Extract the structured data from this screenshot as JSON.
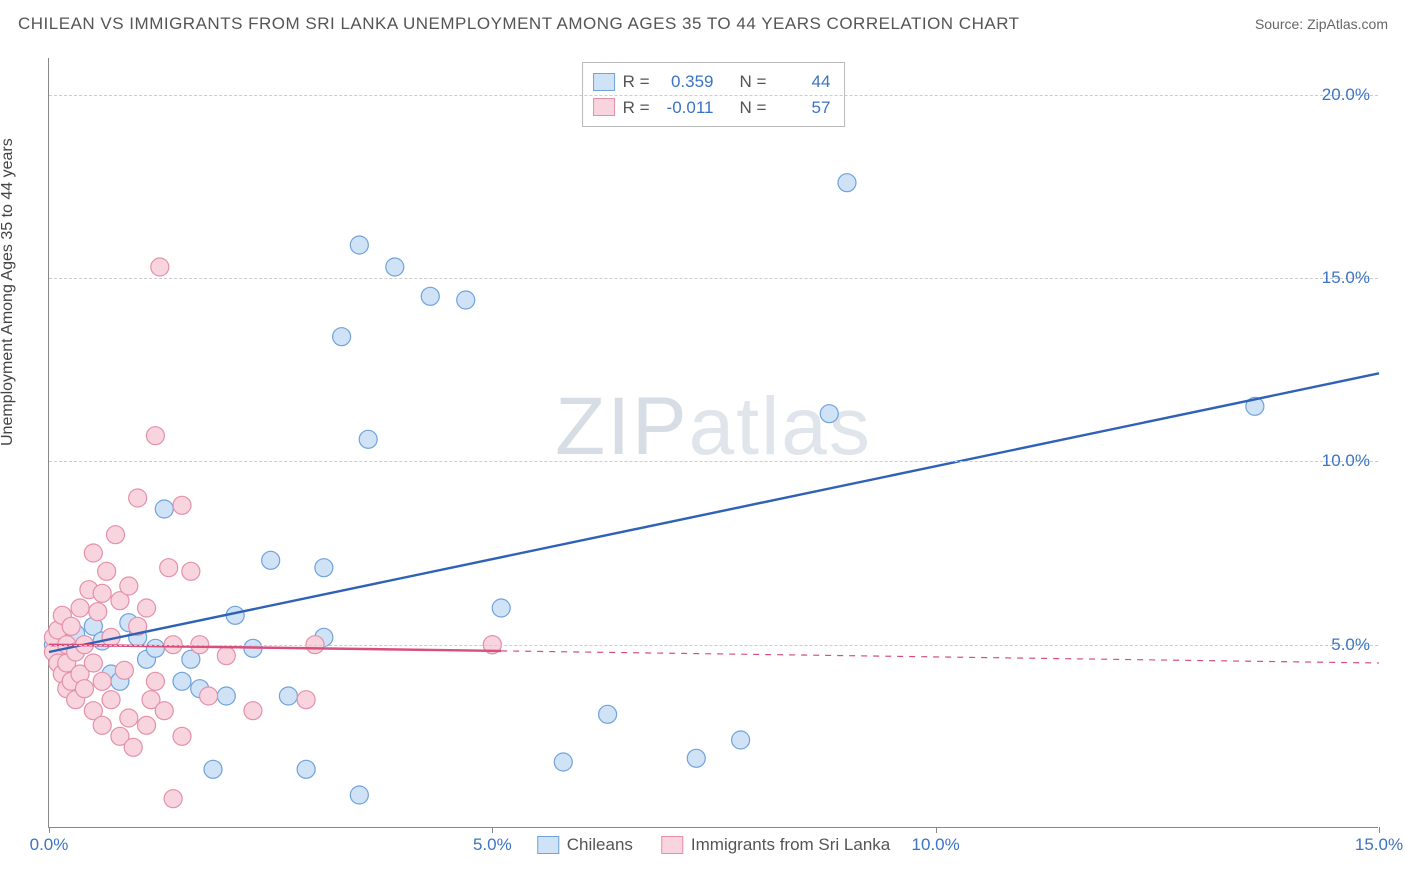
{
  "title": "CHILEAN VS IMMIGRANTS FROM SRI LANKA UNEMPLOYMENT AMONG AGES 35 TO 44 YEARS CORRELATION CHART",
  "source_label": "Source: ",
  "source_name": "ZipAtlas.com",
  "watermark_a": "ZIP",
  "watermark_b": "atlas",
  "ylabel": "Unemployment Among Ages 35 to 44 years",
  "chart": {
    "type": "scatter-with-regression",
    "background_color": "#ffffff",
    "grid_color": "#cccccc",
    "axis_color": "#888888",
    "xlim": [
      0,
      15
    ],
    "ylim": [
      0,
      21
    ],
    "xticks": [
      0,
      5,
      10,
      15
    ],
    "xtick_labels": [
      "0.0%",
      "5.0%",
      "10.0%",
      "15.0%"
    ],
    "xtick_color": "#3b74c4",
    "yticks": [
      5,
      10,
      15,
      20
    ],
    "ytick_labels": [
      "5.0%",
      "10.0%",
      "15.0%",
      "20.0%"
    ],
    "ytick_color": "#3b74c4",
    "point_radius": 9,
    "point_stroke_width": 1.2,
    "reg_line_width": 2.4,
    "stats_box": {
      "rows": [
        {
          "swatch_fill": "#cfe2f6",
          "swatch_stroke": "#6fa3dc",
          "r_label": "R =",
          "r_val": "0.359",
          "r_color": "#3b74c4",
          "n_label": "N =",
          "n_val": "44",
          "n_color": "#3b74c4"
        },
        {
          "swatch_fill": "#f8d4de",
          "swatch_stroke": "#e590ab",
          "r_label": "R =",
          "r_val": "-0.011",
          "r_color": "#3b74c4",
          "n_label": "N =",
          "n_val": "57",
          "n_color": "#3b74c4"
        }
      ]
    },
    "legend": [
      {
        "swatch_fill": "#cfe2f6",
        "swatch_stroke": "#6fa3dc",
        "label": "Chileans"
      },
      {
        "swatch_fill": "#f8d4de",
        "swatch_stroke": "#e590ab",
        "label": "Immigrants from Sri Lanka"
      }
    ],
    "series": [
      {
        "name": "Chileans",
        "fill": "#cfe2f6",
        "stroke": "#6fa3dc",
        "regression": {
          "x1": 0,
          "y1": 4.8,
          "x2": 15,
          "y2": 12.4,
          "solid_until_x": 15,
          "color": "#2f62b7"
        },
        "points": [
          [
            0.05,
            5.0
          ],
          [
            0.1,
            4.8
          ],
          [
            0.15,
            5.2
          ],
          [
            0.2,
            5.0
          ],
          [
            0.2,
            4.6
          ],
          [
            0.3,
            4.0
          ],
          [
            0.3,
            5.3
          ],
          [
            0.5,
            5.5
          ],
          [
            0.6,
            5.1
          ],
          [
            0.7,
            4.2
          ],
          [
            0.8,
            4.0
          ],
          [
            0.9,
            5.6
          ],
          [
            1.0,
            5.2
          ],
          [
            1.1,
            4.6
          ],
          [
            1.2,
            4.9
          ],
          [
            1.3,
            8.7
          ],
          [
            1.5,
            4.0
          ],
          [
            1.6,
            4.6
          ],
          [
            1.7,
            3.8
          ],
          [
            1.85,
            1.6
          ],
          [
            2.0,
            3.6
          ],
          [
            2.1,
            5.8
          ],
          [
            2.3,
            4.9
          ],
          [
            2.5,
            7.3
          ],
          [
            2.7,
            3.6
          ],
          [
            2.9,
            1.6
          ],
          [
            3.1,
            5.2
          ],
          [
            3.1,
            7.1
          ],
          [
            3.3,
            13.4
          ],
          [
            3.5,
            0.9
          ],
          [
            3.5,
            15.9
          ],
          [
            3.6,
            10.6
          ],
          [
            3.9,
            15.3
          ],
          [
            4.3,
            14.5
          ],
          [
            4.7,
            14.4
          ],
          [
            5.0,
            5.0
          ],
          [
            5.1,
            6.0
          ],
          [
            5.8,
            1.8
          ],
          [
            6.3,
            3.1
          ],
          [
            7.3,
            1.9
          ],
          [
            7.8,
            2.4
          ],
          [
            8.8,
            11.3
          ],
          [
            9.0,
            17.6
          ],
          [
            13.6,
            11.5
          ]
        ]
      },
      {
        "name": "Immigrants from Sri Lanka",
        "fill": "#f8d4de",
        "stroke": "#e590ab",
        "regression": {
          "x1": 0,
          "y1": 5.0,
          "x2": 15,
          "y2": 4.5,
          "solid_until_x": 5.1,
          "color": "#d84f7c"
        },
        "points": [
          [
            0.05,
            4.8
          ],
          [
            0.05,
            5.2
          ],
          [
            0.1,
            4.5
          ],
          [
            0.1,
            5.4
          ],
          [
            0.15,
            4.2
          ],
          [
            0.15,
            5.8
          ],
          [
            0.2,
            3.8
          ],
          [
            0.2,
            4.5
          ],
          [
            0.2,
            5.0
          ],
          [
            0.25,
            4.0
          ],
          [
            0.25,
            5.5
          ],
          [
            0.3,
            3.5
          ],
          [
            0.3,
            4.8
          ],
          [
            0.35,
            6.0
          ],
          [
            0.35,
            4.2
          ],
          [
            0.4,
            5.0
          ],
          [
            0.4,
            3.8
          ],
          [
            0.45,
            6.5
          ],
          [
            0.5,
            4.5
          ],
          [
            0.5,
            3.2
          ],
          [
            0.5,
            7.5
          ],
          [
            0.55,
            5.9
          ],
          [
            0.6,
            4.0
          ],
          [
            0.6,
            2.8
          ],
          [
            0.6,
            6.4
          ],
          [
            0.65,
            7.0
          ],
          [
            0.7,
            3.5
          ],
          [
            0.7,
            5.2
          ],
          [
            0.75,
            8.0
          ],
          [
            0.8,
            6.2
          ],
          [
            0.8,
            2.5
          ],
          [
            0.85,
            4.3
          ],
          [
            0.9,
            6.6
          ],
          [
            0.9,
            3.0
          ],
          [
            0.95,
            2.2
          ],
          [
            1.0,
            5.5
          ],
          [
            1.0,
            9.0
          ],
          [
            1.1,
            2.8
          ],
          [
            1.1,
            6.0
          ],
          [
            1.15,
            3.5
          ],
          [
            1.2,
            10.7
          ],
          [
            1.2,
            4.0
          ],
          [
            1.25,
            15.3
          ],
          [
            1.3,
            3.2
          ],
          [
            1.35,
            7.1
          ],
          [
            1.4,
            5.0
          ],
          [
            1.4,
            0.8
          ],
          [
            1.5,
            8.8
          ],
          [
            1.5,
            2.5
          ],
          [
            1.6,
            7.0
          ],
          [
            1.7,
            5.0
          ],
          [
            1.8,
            3.6
          ],
          [
            2.0,
            4.7
          ],
          [
            2.3,
            3.2
          ],
          [
            2.9,
            3.5
          ],
          [
            3.0,
            5.0
          ],
          [
            5.0,
            5.0
          ]
        ]
      }
    ]
  }
}
